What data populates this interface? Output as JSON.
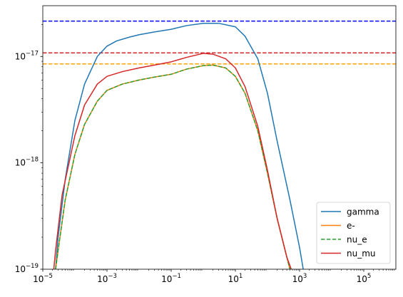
{
  "chart_data": {
    "type": "line",
    "x_scale": "log",
    "y_scale": "log",
    "xlim": [
      1e-05,
      1000000.0
    ],
    "ylim": [
      1e-19,
      3e-17
    ],
    "x_ticks": [
      {
        "value": 1e-05,
        "base": "10",
        "exp": "−5"
      },
      {
        "value": 0.001,
        "base": "10",
        "exp": "−3"
      },
      {
        "value": 0.1,
        "base": "10",
        "exp": "−1"
      },
      {
        "value": 10.0,
        "base": "10",
        "exp": "1"
      },
      {
        "value": 1000.0,
        "base": "10",
        "exp": "3"
      },
      {
        "value": 100000.0,
        "base": "10",
        "exp": "5"
      }
    ],
    "y_ticks": [
      {
        "value": 1e-19,
        "base": "10",
        "exp": "−19"
      },
      {
        "value": 1e-18,
        "base": "10",
        "exp": "−18"
      },
      {
        "value": 1e-17,
        "base": "10",
        "exp": "−17"
      }
    ],
    "grid": false,
    "legend_position": "lower-right",
    "series": [
      {
        "name": "gamma",
        "color": "#1f77b4",
        "style": "solid",
        "x": [
          2.5e-05,
          3e-05,
          5e-05,
          0.0001,
          0.0002,
          0.0005,
          0.001,
          0.002,
          0.005,
          0.01,
          0.03,
          0.1,
          0.3,
          1,
          3,
          10,
          20,
          50,
          100,
          200,
          500,
          1000,
          1300
        ],
        "y": [
          1e-19,
          2e-19,
          7e-19,
          2.5e-18,
          5.5e-18,
          1e-17,
          1.25e-17,
          1.4e-17,
          1.52e-17,
          1.6e-17,
          1.7e-17,
          1.8e-17,
          1.95e-17,
          2.05e-17,
          2.05e-17,
          1.9e-17,
          1.55e-17,
          9.5e-18,
          4.5e-18,
          1.6e-18,
          4.5e-19,
          1.6e-19,
          1e-19
        ]
      },
      {
        "name": "e-",
        "color": "#ff7f0e",
        "style": "solid",
        "x": [
          2.5e-05,
          3e-05,
          5e-05,
          0.0001,
          0.0002,
          0.0005,
          0.001,
          0.003,
          0.01,
          0.03,
          0.1,
          0.3,
          1,
          2,
          5,
          10,
          20,
          50,
          100,
          200,
          400,
          500
        ],
        "y": [
          1e-19,
          1.5e-19,
          4.5e-19,
          1.2e-18,
          2.3e-18,
          3.8e-18,
          4.8e-18,
          5.5e-18,
          6e-18,
          6.4e-18,
          6.8e-18,
          7.6e-18,
          8.2e-18,
          8.3e-18,
          7.8e-18,
          6.5e-18,
          4.5e-18,
          2e-18,
          8e-19,
          3e-19,
          1.3e-19,
          1e-19
        ]
      },
      {
        "name": "nu_e",
        "color": "#2ca02c",
        "style": "dashed",
        "x": [
          2.5e-05,
          3e-05,
          5e-05,
          0.0001,
          0.0002,
          0.0005,
          0.001,
          0.003,
          0.01,
          0.03,
          0.1,
          0.3,
          1,
          2,
          5,
          10,
          20,
          50,
          100,
          200,
          400,
          500
        ],
        "y": [
          1e-19,
          1.5e-19,
          4.5e-19,
          1.2e-18,
          2.3e-18,
          3.8e-18,
          4.8e-18,
          5.5e-18,
          6e-18,
          6.4e-18,
          6.8e-18,
          7.6e-18,
          8.2e-18,
          8.3e-18,
          7.8e-18,
          6.5e-18,
          4.5e-18,
          2e-18,
          8e-19,
          3e-19,
          1.3e-19,
          1e-19
        ]
      },
      {
        "name": "nu_mu",
        "color": "#d62728",
        "style": "solid",
        "x": [
          2.2e-05,
          2.5e-05,
          4e-05,
          0.0001,
          0.0002,
          0.0005,
          0.001,
          0.003,
          0.01,
          0.03,
          0.1,
          0.3,
          1,
          2,
          5,
          10,
          20,
          50,
          100,
          200,
          400,
          550
        ],
        "y": [
          1e-19,
          1.5e-19,
          5e-19,
          1.8e-18,
          3.5e-18,
          5.5e-18,
          6.5e-18,
          7.2e-18,
          7.8e-18,
          8.3e-18,
          8.9e-18,
          9.8e-18,
          1.07e-17,
          1.05e-17,
          9.5e-18,
          7.8e-18,
          5.2e-18,
          2.2e-18,
          8.5e-19,
          3e-19,
          1.3e-19,
          1e-19
        ]
      }
    ],
    "reference_lines": [
      {
        "y": 2.15e-17,
        "color": "#0000ff",
        "style": "dashed"
      },
      {
        "y": 1.08e-17,
        "color": "#d62728",
        "style": "dashed"
      },
      {
        "y": 8.5e-18,
        "color": "#ffa500",
        "style": "dashed"
      }
    ]
  }
}
